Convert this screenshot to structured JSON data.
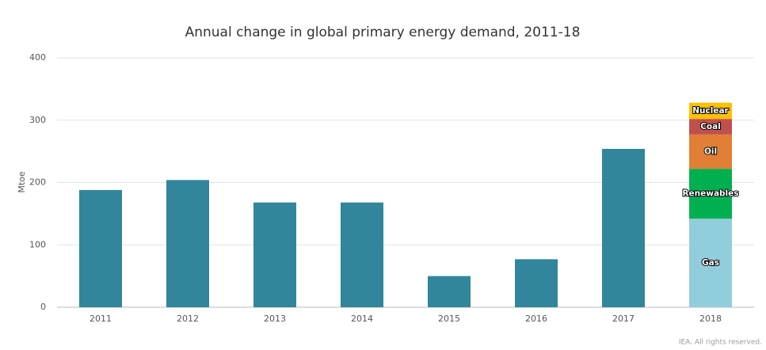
{
  "chart_data": {
    "type": "stacked_bar",
    "title": "Annual change in global primary energy demand, 2011-18",
    "y_label": "Mtoe",
    "source": "IEA. All rights reserved.",
    "categories": [
      "2011",
      "2012",
      "2013",
      "2014",
      "2015",
      "2016",
      "2017",
      "2018"
    ],
    "series": [
      {
        "color": "#31869b",
        "values": [
          188,
          204,
          168,
          168,
          50,
          77,
          254,
          null
        ]
      },
      {
        "name": "Gas",
        "color": "#92cddc",
        "values": [
          null,
          null,
          null,
          null,
          null,
          null,
          null,
          142
        ]
      },
      {
        "name": "Renewables",
        "color": "#00b050",
        "values": [
          null,
          null,
          null,
          null,
          null,
          null,
          null,
          80
        ]
      },
      {
        "name": "Oil",
        "color": "#e07f35",
        "values": [
          null,
          null,
          null,
          null,
          null,
          null,
          null,
          55
        ]
      },
      {
        "name": "Coal",
        "color": "#c0504d",
        "values": [
          null,
          null,
          null,
          null,
          null,
          null,
          null,
          25
        ]
      },
      {
        "name": "Nuclear",
        "color": "#ffc000",
        "values": [
          null,
          null,
          null,
          null,
          null,
          null,
          null,
          26
        ]
      }
    ],
    "ylim": [
      0,
      400
    ],
    "yticks": [
      0,
      100,
      200,
      300,
      400
    ],
    "grid": true
  }
}
